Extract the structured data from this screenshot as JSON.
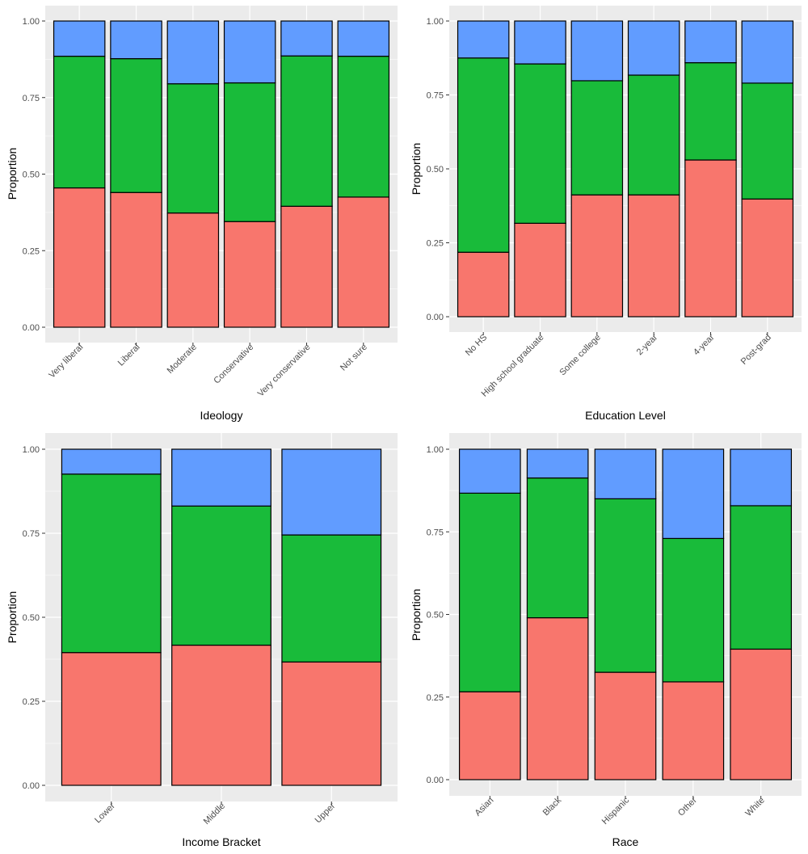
{
  "colors": {
    "panel_background": "#ebebeb",
    "grid_major": "#ffffff",
    "segment_bottom": "#f8766d",
    "segment_middle": "#19bb3a",
    "segment_top": "#619cff",
    "bar_outline": "#000000"
  },
  "chart_data": [
    {
      "type": "bar",
      "stacked": true,
      "xlabel": "Ideology",
      "ylabel": "Proportion",
      "ylim": [
        0,
        1
      ],
      "yticks": [
        "0.00",
        "0.25",
        "0.50",
        "0.75",
        "1.00"
      ],
      "x_tick_rotation": 45,
      "categories": [
        "Very liberal",
        "Liberal",
        "Moderate",
        "Conservative",
        "Very conservative",
        "Not sure"
      ],
      "series": [
        {
          "values": [
            0.455,
            0.44,
            0.373,
            0.345,
            0.395,
            0.425
          ]
        },
        {
          "values": [
            0.43,
            0.437,
            0.422,
            0.453,
            0.491,
            0.46
          ]
        },
        {
          "values": [
            0.115,
            0.123,
            0.205,
            0.202,
            0.114,
            0.115
          ]
        }
      ],
      "grid": true,
      "legend": "none"
    },
    {
      "type": "bar",
      "stacked": true,
      "xlabel": "Education Level",
      "ylabel": "Proportion",
      "ylim": [
        0,
        1
      ],
      "yticks": [
        "0.00",
        "0.25",
        "0.50",
        "0.75",
        "1.00"
      ],
      "x_tick_rotation": 45,
      "categories": [
        "No HS",
        "High school graduate",
        "Some college",
        "2-year",
        "4-year",
        "Post-grad"
      ],
      "series": [
        {
          "values": [
            0.218,
            0.316,
            0.412,
            0.412,
            0.53,
            0.398
          ]
        },
        {
          "values": [
            0.657,
            0.539,
            0.386,
            0.405,
            0.329,
            0.392
          ]
        },
        {
          "values": [
            0.125,
            0.145,
            0.202,
            0.183,
            0.141,
            0.21
          ]
        }
      ],
      "grid": true,
      "legend": "none"
    },
    {
      "type": "bar",
      "stacked": true,
      "xlabel": "Income Bracket",
      "ylabel": "Proportion",
      "ylim": [
        0,
        1
      ],
      "yticks": [
        "0.00",
        "0.25",
        "0.50",
        "0.75",
        "1.00"
      ],
      "x_tick_rotation": 45,
      "categories": [
        "Lower",
        "Middle",
        "Upper"
      ],
      "series": [
        {
          "values": [
            0.395,
            0.417,
            0.367
          ]
        },
        {
          "values": [
            0.531,
            0.414,
            0.378
          ]
        },
        {
          "values": [
            0.074,
            0.169,
            0.255
          ]
        }
      ],
      "grid": true,
      "legend": "none"
    },
    {
      "type": "bar",
      "stacked": true,
      "xlabel": "Race",
      "ylabel": "Proportion",
      "ylim": [
        0,
        1
      ],
      "yticks": [
        "0.00",
        "0.25",
        "0.50",
        "0.75",
        "1.00"
      ],
      "x_tick_rotation": 45,
      "categories": [
        "Asian",
        "Black",
        "Hispanic",
        "Other",
        "White"
      ],
      "series": [
        {
          "values": [
            0.266,
            0.49,
            0.325,
            0.296,
            0.395
          ]
        },
        {
          "values": [
            0.601,
            0.423,
            0.525,
            0.434,
            0.434
          ]
        },
        {
          "values": [
            0.133,
            0.087,
            0.15,
            0.27,
            0.171
          ]
        }
      ],
      "grid": true,
      "legend": "none"
    }
  ]
}
